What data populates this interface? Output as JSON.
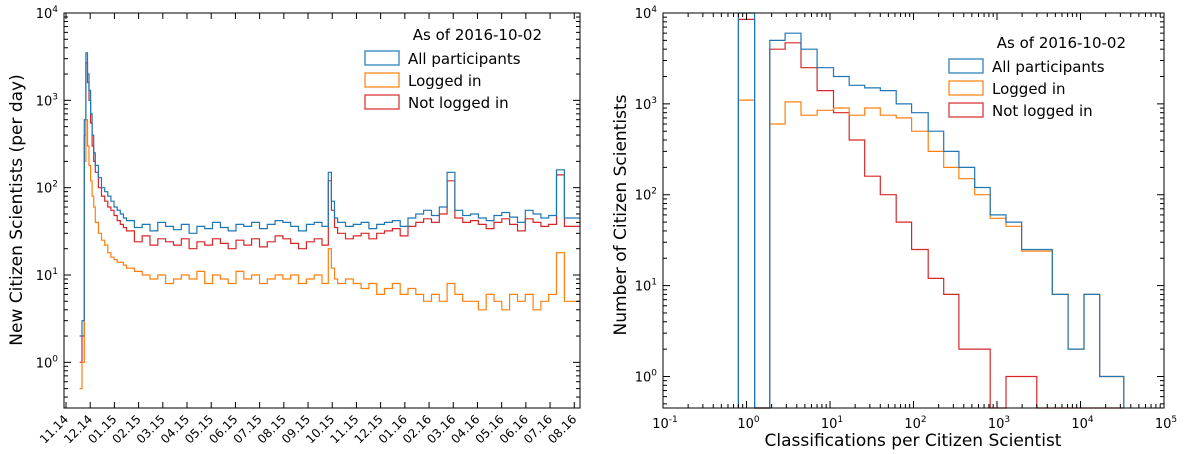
{
  "colors": {
    "all": "#1f77b4",
    "logged": "#ff7f0e",
    "notlogged": "#d62728"
  },
  "chart_data": [
    {
      "type": "line",
      "ylabel": "New Citizen Scientists (per day)",
      "yscale": "log",
      "ylim": [
        0.3,
        10000
      ],
      "x_tick_labels": [
        "11.14",
        "12.14",
        "01.15",
        "02.15",
        "03.15",
        "04.15",
        "05.15",
        "06.15",
        "07.15",
        "08.15",
        "09.15",
        "10.15",
        "11.15",
        "12.15",
        "01.16",
        "02.16",
        "03.16",
        "04.16",
        "05.16",
        "06.16",
        "07.16",
        "08.16"
      ],
      "y_ticks": [
        1,
        10,
        100,
        1000,
        10000
      ],
      "legend": {
        "title": "As of 2016-10-02",
        "entries": [
          "All participants",
          "Logged in",
          "Not logged in"
        ],
        "placement": "top-right"
      },
      "x_unit": "days since 2014-11-01",
      "series": [
        {
          "name": "All participants",
          "color_key": "all",
          "x": [
            20,
            23,
            26,
            28,
            30,
            32,
            34,
            36,
            38,
            40,
            44,
            48,
            52,
            56,
            60,
            64,
            68,
            72,
            76,
            80,
            90,
            100,
            110,
            120,
            130,
            140,
            150,
            160,
            170,
            180,
            190,
            200,
            210,
            220,
            230,
            240,
            250,
            260,
            270,
            280,
            290,
            300,
            310,
            320,
            330,
            338,
            342,
            346,
            350,
            360,
            370,
            380,
            390,
            400,
            410,
            420,
            430,
            440,
            450,
            460,
            470,
            480,
            490,
            500,
            510,
            520,
            530,
            540,
            550,
            560,
            570,
            580,
            590,
            600,
            610,
            620,
            630,
            640
          ],
          "y": [
            2,
            3,
            600,
            3500,
            2000,
            1300,
            700,
            400,
            250,
            180,
            130,
            100,
            90,
            80,
            70,
            60,
            55,
            50,
            45,
            42,
            35,
            38,
            32,
            40,
            36,
            33,
            38,
            30,
            36,
            34,
            40,
            35,
            32,
            38,
            36,
            40,
            34,
            38,
            42,
            40,
            36,
            32,
            38,
            40,
            36,
            150,
            70,
            45,
            40,
            36,
            38,
            40,
            34,
            38,
            40,
            42,
            36,
            45,
            50,
            55,
            48,
            60,
            150,
            55,
            48,
            50,
            45,
            42,
            48,
            52,
            46,
            40,
            55,
            50,
            45,
            48,
            160,
            45
          ]
        },
        {
          "name": "Logged in",
          "color_key": "logged",
          "x": [
            20,
            23,
            26,
            28,
            30,
            32,
            34,
            36,
            38,
            40,
            44,
            48,
            52,
            56,
            60,
            64,
            68,
            72,
            76,
            80,
            90,
            100,
            110,
            120,
            130,
            140,
            150,
            160,
            170,
            180,
            190,
            200,
            210,
            220,
            230,
            240,
            250,
            260,
            270,
            280,
            290,
            300,
            310,
            320,
            330,
            338,
            342,
            346,
            350,
            360,
            370,
            380,
            390,
            400,
            410,
            420,
            430,
            440,
            450,
            460,
            470,
            480,
            490,
            500,
            510,
            520,
            530,
            540,
            550,
            560,
            570,
            580,
            590,
            600,
            610,
            620,
            630,
            640
          ],
          "y": [
            0.5,
            1,
            200,
            600,
            300,
            180,
            120,
            80,
            60,
            40,
            30,
            25,
            22,
            18,
            16,
            15,
            14,
            14,
            13,
            12,
            11,
            10,
            9,
            10,
            8,
            9,
            10,
            9,
            11,
            8,
            10,
            9,
            8,
            11,
            9,
            10,
            8,
            9,
            10,
            9,
            10,
            8,
            9,
            10,
            8,
            20,
            12,
            9,
            8,
            9,
            8,
            7,
            8,
            6,
            7,
            8,
            6,
            7,
            6,
            5,
            6,
            5,
            8,
            6,
            5,
            5,
            4,
            6,
            5,
            4,
            6,
            5,
            6,
            4,
            5,
            6,
            18,
            5
          ]
        },
        {
          "name": "Not logged in",
          "color_key": "notlogged",
          "x": [
            20,
            23,
            26,
            28,
            30,
            32,
            34,
            36,
            38,
            40,
            44,
            48,
            52,
            56,
            60,
            64,
            68,
            72,
            76,
            80,
            90,
            100,
            110,
            120,
            130,
            140,
            150,
            160,
            170,
            180,
            190,
            200,
            210,
            220,
            230,
            240,
            250,
            260,
            270,
            280,
            290,
            300,
            310,
            320,
            330,
            338,
            342,
            346,
            350,
            360,
            370,
            380,
            390,
            400,
            410,
            420,
            430,
            440,
            450,
            460,
            470,
            480,
            490,
            500,
            510,
            520,
            530,
            540,
            550,
            560,
            570,
            580,
            590,
            600,
            610,
            620,
            630,
            640
          ],
          "y": [
            1,
            2,
            400,
            2700,
            1600,
            1000,
            550,
            300,
            200,
            150,
            100,
            80,
            70,
            60,
            55,
            48,
            42,
            38,
            35,
            32,
            24,
            28,
            22,
            26,
            24,
            22,
            26,
            20,
            24,
            22,
            26,
            23,
            20,
            25,
            22,
            26,
            21,
            24,
            28,
            26,
            23,
            20,
            24,
            26,
            22,
            120,
            55,
            35,
            30,
            26,
            28,
            30,
            26,
            30,
            32,
            34,
            28,
            36,
            40,
            44,
            40,
            50,
            120,
            45,
            40,
            42,
            38,
            34,
            40,
            44,
            38,
            32,
            44,
            40,
            36,
            38,
            140,
            36
          ]
        }
      ]
    },
    {
      "type": "histogram",
      "xlabel": "Classifications per Citizen Scientist",
      "ylabel": "Number of Citizen Scientists",
      "xscale": "log",
      "yscale": "log",
      "xlim": [
        0.1,
        100000
      ],
      "ylim": [
        0.45,
        10000
      ],
      "x_ticks": [
        0.1,
        1,
        10,
        100,
        1000,
        10000,
        100000
      ],
      "y_ticks": [
        1,
        10,
        100,
        1000,
        10000
      ],
      "legend": {
        "title": "As of 2016-10-02",
        "entries": [
          "All participants",
          "Logged in",
          "Not logged in"
        ],
        "placement": "top-right"
      },
      "bin_edges": [
        0.8,
        1.25,
        1.9,
        2.9,
        4.5,
        7,
        11,
        17,
        26,
        40,
        62,
        95,
        150,
        230,
        350,
        540,
        830,
        1280,
        1970,
        3000,
        4600,
        7100,
        11000,
        17000,
        26000,
        33000
      ],
      "series": [
        {
          "name": "All participants",
          "color_key": "all",
          "counts": [
            10000,
            0,
            5000,
            6000,
            4000,
            2500,
            2000,
            1600,
            1500,
            1400,
            1000,
            800,
            500,
            300,
            200,
            120,
            60,
            50,
            25,
            25,
            8,
            2,
            8,
            1,
            1
          ]
        },
        {
          "name": "Logged in",
          "color_key": "logged",
          "counts": [
            1100,
            0,
            600,
            1050,
            750,
            850,
            900,
            750,
            900,
            750,
            700,
            500,
            300,
            200,
            150,
            100,
            55,
            45,
            24,
            24,
            8,
            2,
            8,
            1,
            1
          ]
        },
        {
          "name": "Not logged in",
          "color_key": "notlogged",
          "counts": [
            8500,
            0,
            4000,
            4700,
            2500,
            1400,
            800,
            400,
            160,
            100,
            50,
            25,
            12,
            8,
            2,
            2,
            0,
            1,
            1,
            0,
            0,
            0,
            0,
            0,
            0
          ]
        }
      ]
    }
  ]
}
